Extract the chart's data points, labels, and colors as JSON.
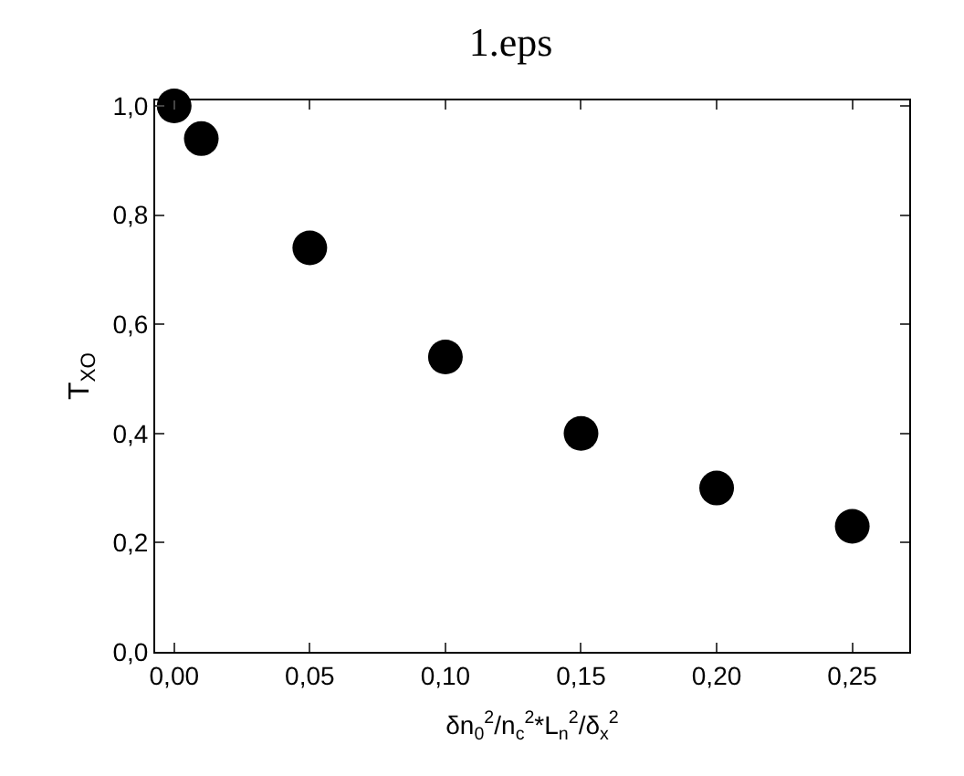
{
  "chart_data": {
    "type": "scatter",
    "title": "1.eps",
    "xlabel": "δn$_{0}$$^{2}$/n$_{c}$$^{2}$*L$_{n}$$^{2}$/δ$_{x}$$^{2}$",
    "ylabel": "T$_{XO}$",
    "x": [
      0.0,
      0.01,
      0.05,
      0.1,
      0.15,
      0.2,
      0.25
    ],
    "series": [
      {
        "color": "#000000",
        "values": [
          1.0,
          0.94,
          0.74,
          0.54,
          0.4,
          0.3,
          0.23
        ]
      }
    ],
    "marker": "circle",
    "xlim": [
      -0.007,
      0.271
    ],
    "ylim": [
      0.0,
      1.01
    ],
    "xticks": [
      {
        "value": 0.0,
        "label": "0,00"
      },
      {
        "value": 0.05,
        "label": "0,05"
      },
      {
        "value": 0.1,
        "label": "0,10"
      },
      {
        "value": 0.15,
        "label": "0,15"
      },
      {
        "value": 0.2,
        "label": "0,20"
      },
      {
        "value": 0.25,
        "label": "0,25"
      }
    ],
    "yticks": [
      {
        "value": 0.0,
        "label": "0,0"
      },
      {
        "value": 0.2,
        "label": "0,2"
      },
      {
        "value": 0.4,
        "label": "0,4"
      },
      {
        "value": 0.6,
        "label": "0,6"
      },
      {
        "value": 0.8,
        "label": "0,8"
      },
      {
        "value": 1.0,
        "label": "1,0"
      }
    ]
  }
}
